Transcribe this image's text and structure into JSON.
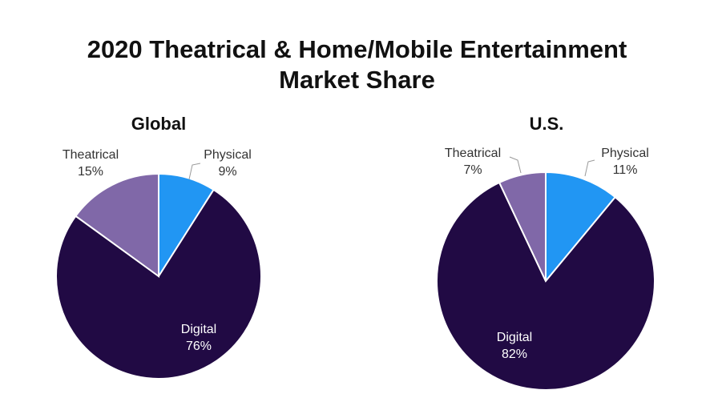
{
  "title_line1": "2020 Theatrical & Home/Mobile Entertainment",
  "title_line2": "Market Share",
  "chart_data": [
    {
      "type": "pie",
      "title": "Global",
      "slices": [
        {
          "label": "Physical",
          "value": 9,
          "display": "9%",
          "color": "#2196f3"
        },
        {
          "label": "Digital",
          "value": 76,
          "display": "76%",
          "color": "#210a44"
        },
        {
          "label": "Theatrical",
          "value": 15,
          "display": "15%",
          "color": "#8068a8"
        }
      ]
    },
    {
      "type": "pie",
      "title": "U.S.",
      "slices": [
        {
          "label": "Physical",
          "value": 11,
          "display": "11%",
          "color": "#2196f3"
        },
        {
          "label": "Digital",
          "value": 82,
          "display": "82%",
          "color": "#210a44"
        },
        {
          "label": "Theatrical",
          "value": 7,
          "display": "7%",
          "color": "#8068a8"
        }
      ]
    }
  ]
}
